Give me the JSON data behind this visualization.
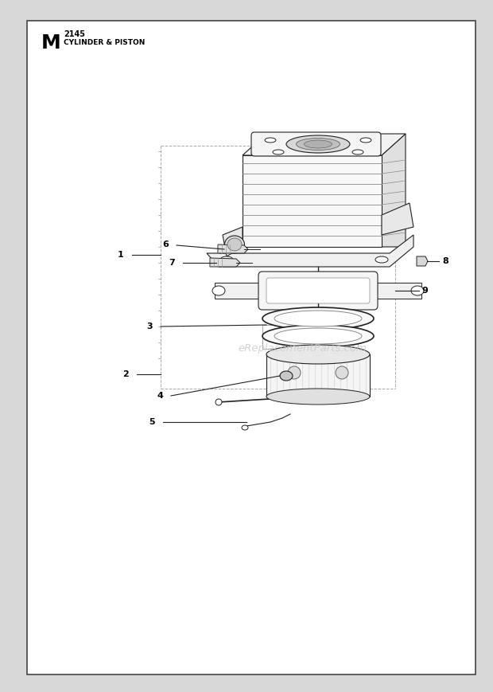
{
  "title_letter": "M",
  "title_number": "2145",
  "title_text": "CYLINDER & PISTON",
  "watermark": "eReplacementParts.com",
  "bg_color": "#ffffff",
  "border_color": "#333333",
  "outer_bg": "#d8d8d8",
  "line_color": "#222222",
  "lw": 0.8
}
